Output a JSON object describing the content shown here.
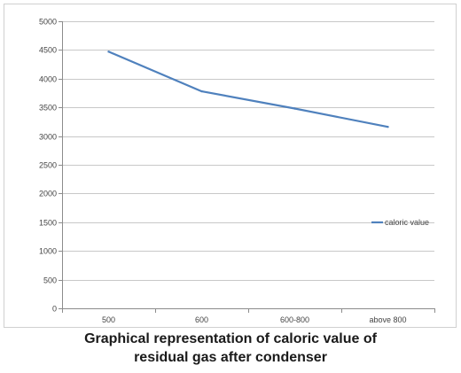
{
  "chart_data": {
    "type": "line",
    "title_lines": [
      "Graphical representation of caloric value of",
      "residual gas after condenser"
    ],
    "categories": [
      "500",
      "600",
      "600-800",
      "above 800"
    ],
    "series": [
      {
        "name": "caloric value",
        "values": [
          4470,
          3780,
          3480,
          3160
        ]
      }
    ],
    "ylim": [
      0,
      5000
    ],
    "yticks": [
      0,
      500,
      1000,
      1500,
      2000,
      2500,
      3000,
      3500,
      4000,
      4500,
      5000
    ],
    "grid": true,
    "legend": "right",
    "line_color": "#4F81BD"
  }
}
